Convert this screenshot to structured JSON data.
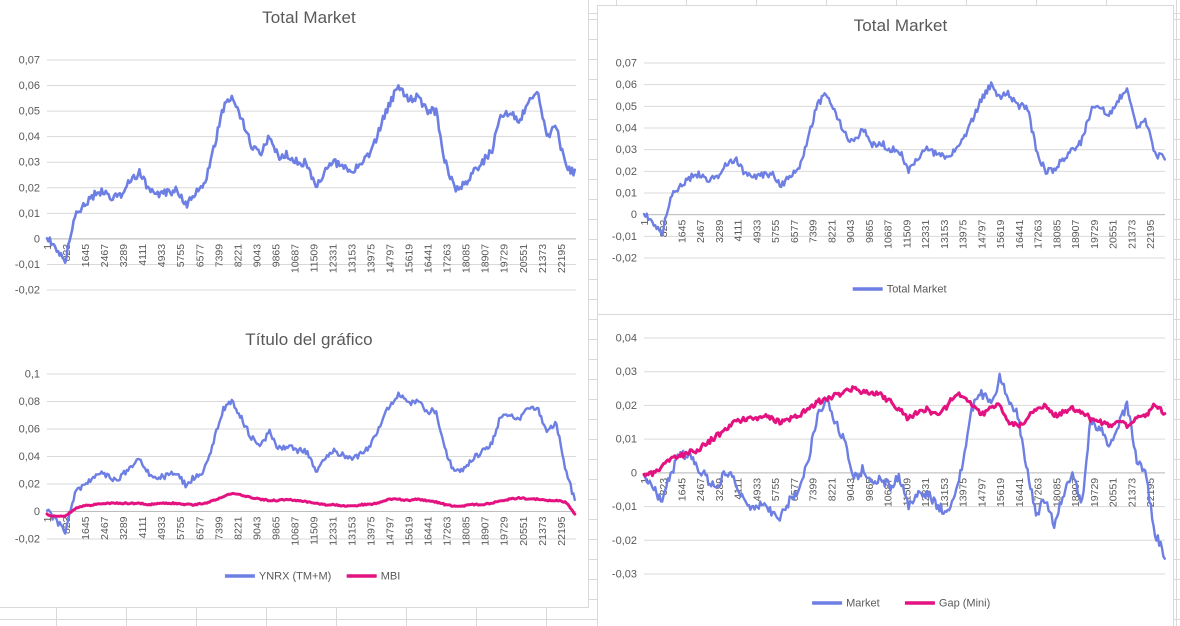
{
  "sheet": {
    "description": "Excel worksheet with four embedded line charts"
  },
  "colors": {
    "series_blue": "#6E7FE4",
    "series_pink": "#E31280",
    "gridline": "#D9D9D9",
    "zero_axis": "#BDBDBD",
    "axis_text": "#595959",
    "title_text": "#595959",
    "legend_text": "#595959",
    "chart_border": "#D9D9D9",
    "cell_grid": "#D9D9D9",
    "background": "#FFFFFF"
  },
  "x_axis": {
    "labels": [
      "1",
      "823",
      "1645",
      "2467",
      "3289",
      "4111",
      "4933",
      "5755",
      "6577",
      "7399",
      "8221",
      "9043",
      "9865",
      "10687",
      "11509",
      "12331",
      "13153",
      "13975",
      "14797",
      "15619",
      "16441",
      "17263",
      "18085",
      "18907",
      "19729",
      "20551",
      "21373",
      "22195"
    ],
    "x_max": 22850
  },
  "chart_data": [
    {
      "type": "line",
      "title": "Total Market",
      "ylim": [
        -0.02,
        0.07
      ],
      "ytick_labels": [
        "0,07",
        "0,06",
        "0,05",
        "0,04",
        "0,03",
        "0,02",
        "0,01",
        "0",
        "-0,01",
        "-0,02"
      ],
      "grid": true,
      "show_legend": false,
      "series": [
        {
          "name": "Total Market",
          "color": "series_blue",
          "points_key": "total_market",
          "stroke_width": 2.6,
          "noise": 0.0016
        }
      ]
    },
    {
      "type": "line",
      "title": "Total Market",
      "ylim": [
        -0.02,
        0.07
      ],
      "ytick_labels": [
        "0,07",
        "0,06",
        "0,05",
        "0,04",
        "0,03",
        "0,02",
        "0,01",
        "0",
        "-0,01",
        "-0,02"
      ],
      "grid": true,
      "show_legend": true,
      "legend_position": "bottom",
      "series": [
        {
          "name": "Total Market",
          "color": "series_blue",
          "points_key": "total_market",
          "stroke_width": 2.4,
          "noise": 0.0016
        }
      ]
    },
    {
      "type": "line",
      "title": "Título del gráfico",
      "ylim": [
        -0.02,
        0.1
      ],
      "ytick_labels": [
        "0,1",
        "0,08",
        "0,06",
        "0,04",
        "0,02",
        "0",
        "-0,02"
      ],
      "grid": true,
      "show_legend": true,
      "legend_position": "bottom",
      "series": [
        {
          "name": "YNRX (TM+M)",
          "color": "series_blue",
          "points_key": "ynrx",
          "stroke_width": 2.4,
          "noise": 0.0022
        },
        {
          "name": "MBI",
          "color": "series_pink",
          "points_key": "mbi",
          "stroke_width": 3.0,
          "noise": 0.0005
        }
      ]
    },
    {
      "type": "line",
      "title": "",
      "ylim": [
        -0.03,
        0.04
      ],
      "ytick_labels": [
        "0,04",
        "0,03",
        "0,02",
        "0,01",
        "0",
        "-0,01",
        "-0,02",
        "-0,03"
      ],
      "grid": true,
      "show_legend": true,
      "legend_position": "bottom",
      "series": [
        {
          "name": "Market",
          "color": "series_blue",
          "points_key": "market",
          "stroke_width": 2.4,
          "noise": 0.0015
        },
        {
          "name": "Gap (Mini)",
          "color": "series_pink",
          "points_key": "gap_mini",
          "stroke_width": 3.0,
          "noise": 0.0008
        }
      ]
    }
  ],
  "series_points": {
    "x_start": 0,
    "x_step": 400,
    "total_market": [
      0.001,
      -0.004,
      -0.008,
      0.009,
      0.013,
      0.017,
      0.019,
      0.016,
      0.017,
      0.023,
      0.026,
      0.019,
      0.017,
      0.018,
      0.019,
      0.013,
      0.018,
      0.021,
      0.035,
      0.051,
      0.056,
      0.047,
      0.037,
      0.033,
      0.04,
      0.032,
      0.033,
      0.03,
      0.03,
      0.02,
      0.026,
      0.03,
      0.028,
      0.027,
      0.029,
      0.034,
      0.044,
      0.053,
      0.06,
      0.054,
      0.056,
      0.05,
      0.05,
      0.03,
      0.02,
      0.021,
      0.026,
      0.03,
      0.034,
      0.048,
      0.05,
      0.046,
      0.053,
      0.057,
      0.04,
      0.044,
      0.028,
      0.026
    ],
    "ynrx": [
      0.001,
      -0.007,
      -0.015,
      0.013,
      0.019,
      0.025,
      0.028,
      0.023,
      0.025,
      0.033,
      0.038,
      0.028,
      0.025,
      0.026,
      0.028,
      0.019,
      0.026,
      0.03,
      0.051,
      0.074,
      0.081,
      0.068,
      0.054,
      0.048,
      0.058,
      0.046,
      0.048,
      0.044,
      0.044,
      0.029,
      0.038,
      0.044,
      0.041,
      0.039,
      0.042,
      0.049,
      0.064,
      0.077,
      0.086,
      0.078,
      0.081,
      0.073,
      0.073,
      0.044,
      0.029,
      0.03,
      0.038,
      0.044,
      0.049,
      0.07,
      0.072,
      0.067,
      0.077,
      0.075,
      0.058,
      0.064,
      0.03,
      0.008
    ],
    "mbi": [
      -0.002,
      -0.004,
      -0.003,
      0.002,
      0.004,
      0.005,
      0.006,
      0.006,
      0.006,
      0.006,
      0.006,
      0.005,
      0.006,
      0.006,
      0.006,
      0.005,
      0.005,
      0.006,
      0.008,
      0.011,
      0.013,
      0.012,
      0.01,
      0.009,
      0.008,
      0.008,
      0.009,
      0.008,
      0.007,
      0.006,
      0.005,
      0.005,
      0.004,
      0.004,
      0.005,
      0.005,
      0.007,
      0.009,
      0.009,
      0.008,
      0.009,
      0.008,
      0.007,
      0.005,
      0.004,
      0.004,
      0.005,
      0.005,
      0.006,
      0.008,
      0.009,
      0.01,
      0.009,
      0.009,
      0.008,
      0.008,
      0.007,
      -0.002
    ],
    "market": [
      0.0,
      -0.005,
      -0.008,
      0.0,
      0.006,
      0.005,
      0.001,
      -0.002,
      -0.004,
      0.001,
      -0.002,
      -0.008,
      -0.011,
      -0.008,
      -0.012,
      -0.013,
      -0.008,
      -0.006,
      0.004,
      0.016,
      0.023,
      0.015,
      0.009,
      -0.002,
      0.001,
      -0.003,
      -0.002,
      -0.004,
      -0.001,
      -0.01,
      -0.006,
      -0.006,
      -0.009,
      -0.012,
      -0.009,
      0.004,
      0.019,
      0.024,
      0.02,
      0.028,
      0.022,
      0.017,
      0.001,
      -0.012,
      -0.008,
      -0.016,
      -0.006,
      -0.001,
      -0.009,
      0.016,
      0.013,
      0.008,
      0.014,
      0.02,
      0.004,
      0.0,
      -0.018,
      -0.024
    ],
    "gap_mini": [
      -0.001,
      0.0,
      0.002,
      0.004,
      0.005,
      0.006,
      0.007,
      0.009,
      0.011,
      0.013,
      0.015,
      0.016,
      0.016,
      0.017,
      0.016,
      0.015,
      0.016,
      0.017,
      0.019,
      0.021,
      0.022,
      0.023,
      0.024,
      0.025,
      0.024,
      0.024,
      0.023,
      0.021,
      0.019,
      0.016,
      0.018,
      0.019,
      0.017,
      0.019,
      0.023,
      0.023,
      0.02,
      0.017,
      0.02,
      0.02,
      0.015,
      0.014,
      0.016,
      0.019,
      0.02,
      0.017,
      0.018,
      0.019,
      0.018,
      0.016,
      0.015,
      0.014,
      0.015,
      0.014,
      0.016,
      0.017,
      0.02,
      0.018
    ]
  }
}
